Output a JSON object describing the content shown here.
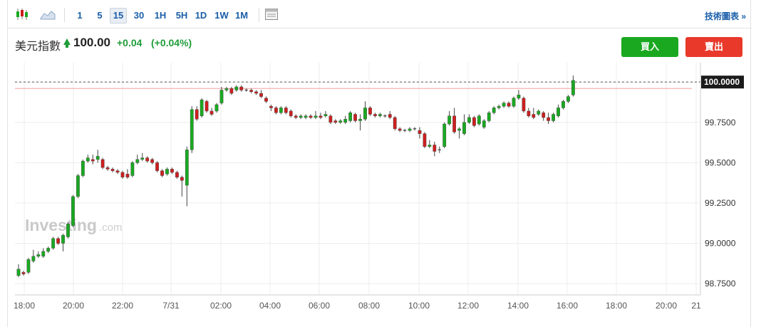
{
  "toolbar": {
    "icons": [
      "candlestick-icon",
      "area-chart-icon",
      "layout-panel-icon"
    ],
    "intervals": [
      "1",
      "5",
      "15",
      "30",
      "1H",
      "5H",
      "1D",
      "1W",
      "1M"
    ],
    "active_interval": "15",
    "tech_link": "技術圖表 »"
  },
  "header": {
    "instrument": "美元指數",
    "price": "100.00",
    "change": "+0.04",
    "change_pct": "(+0.04%)",
    "buy_label": "買入",
    "sell_label": "賣出"
  },
  "watermark": {
    "brand": "Investing",
    "suffix": ".com"
  },
  "colors": {
    "up": "#1aa821",
    "down": "#cc1f1f",
    "accent": "#1a5ea8",
    "current_price_line": "#f3a8a8"
  },
  "chart_data": {
    "type": "candlestick",
    "interval": "15",
    "x_tick_labels": [
      "18:00",
      "20:00",
      "22:00",
      "7/31",
      "02:00",
      "04:00",
      "06:00",
      "08:00",
      "10:00",
      "12:00",
      "14:00",
      "16:00",
      "18:00",
      "20:00",
      "21"
    ],
    "y_tick_labels": [
      "100.0000",
      "99.7500",
      "99.5000",
      "99.2500",
      "99.0000",
      "98.7500"
    ],
    "ylim": [
      98.68,
      100.12
    ],
    "current_price": 100.0,
    "current_price_label": "100.0000",
    "grid": true,
    "candles": [
      [
        98.8,
        98.84,
        98.87,
        98.79
      ],
      [
        98.82,
        98.81,
        98.83,
        98.8
      ],
      [
        98.82,
        98.9,
        98.91,
        98.81
      ],
      [
        98.89,
        98.92,
        98.96,
        98.88
      ],
      [
        98.92,
        98.93,
        98.95,
        98.91
      ],
      [
        98.92,
        98.95,
        98.97,
        98.91
      ],
      [
        98.95,
        98.97,
        98.98,
        98.94
      ],
      [
        98.97,
        99.03,
        99.04,
        98.96
      ],
      [
        99.03,
        99.0,
        99.04,
        98.99
      ],
      [
        99.0,
        99.05,
        99.06,
        98.95
      ],
      [
        99.04,
        99.12,
        99.13,
        99.03
      ],
      [
        99.11,
        99.29,
        99.3,
        99.1
      ],
      [
        99.29,
        99.42,
        99.43,
        99.28
      ],
      [
        99.42,
        99.51,
        99.52,
        99.41
      ],
      [
        99.51,
        99.53,
        99.55,
        99.5
      ],
      [
        99.52,
        99.51,
        99.55,
        99.49
      ],
      [
        99.52,
        99.54,
        99.58,
        99.5
      ],
      [
        99.52,
        99.47,
        99.53,
        99.46
      ],
      [
        99.47,
        99.46,
        99.48,
        99.45
      ],
      [
        99.46,
        99.45,
        99.47,
        99.44
      ],
      [
        99.45,
        99.44,
        99.46,
        99.43
      ],
      [
        99.44,
        99.41,
        99.45,
        99.4
      ],
      [
        99.43,
        99.41,
        99.46,
        99.4
      ],
      [
        99.42,
        99.5,
        99.51,
        99.41
      ],
      [
        99.5,
        99.52,
        99.55,
        99.49
      ],
      [
        99.52,
        99.53,
        99.56,
        99.51
      ],
      [
        99.53,
        99.51,
        99.54,
        99.5
      ],
      [
        99.52,
        99.5,
        99.53,
        99.49
      ],
      [
        99.5,
        99.45,
        99.51,
        99.44
      ],
      [
        99.45,
        99.42,
        99.46,
        99.41
      ],
      [
        99.43,
        99.46,
        99.47,
        99.42
      ],
      [
        99.46,
        99.44,
        99.47,
        99.43
      ],
      [
        99.44,
        99.41,
        99.45,
        99.4
      ],
      [
        99.41,
        99.39,
        99.42,
        99.29
      ],
      [
        99.36,
        99.58,
        99.6,
        99.23
      ],
      [
        99.58,
        99.83,
        99.85,
        99.56
      ],
      [
        99.83,
        99.77,
        99.85,
        99.76
      ],
      [
        99.79,
        99.89,
        99.9,
        99.78
      ],
      [
        99.88,
        99.82,
        99.89,
        99.81
      ],
      [
        99.82,
        99.8,
        99.84,
        99.79
      ],
      [
        99.82,
        99.86,
        99.87,
        99.81
      ],
      [
        99.87,
        99.95,
        99.97,
        99.86
      ],
      [
        99.95,
        99.96,
        99.97,
        99.94
      ],
      [
        99.96,
        99.93,
        99.97,
        99.92
      ],
      [
        99.95,
        99.97,
        99.98,
        99.94
      ],
      [
        99.97,
        99.95,
        99.98,
        99.94
      ],
      [
        99.95,
        99.95,
        99.96,
        99.94
      ],
      [
        99.95,
        99.94,
        99.96,
        99.93
      ],
      [
        99.94,
        99.93,
        99.95,
        99.92
      ],
      [
        99.93,
        99.91,
        99.95,
        99.9
      ],
      [
        99.9,
        99.88,
        99.91,
        99.87
      ],
      [
        99.85,
        99.84,
        99.86,
        99.82
      ],
      [
        99.84,
        99.81,
        99.85,
        99.8
      ],
      [
        99.81,
        99.84,
        99.85,
        99.8
      ],
      [
        99.84,
        99.81,
        99.85,
        99.8
      ],
      [
        99.82,
        99.79,
        99.83,
        99.78
      ],
      [
        99.79,
        99.78,
        99.8,
        99.77
      ],
      [
        99.78,
        99.79,
        99.8,
        99.77
      ],
      [
        99.78,
        99.79,
        99.8,
        99.77
      ],
      [
        99.79,
        99.78,
        99.8,
        99.77
      ],
      [
        99.78,
        99.79,
        99.82,
        99.77
      ],
      [
        99.79,
        99.78,
        99.81,
        99.77
      ],
      [
        99.79,
        99.8,
        99.82,
        99.78
      ],
      [
        99.79,
        99.75,
        99.8,
        99.74
      ],
      [
        99.76,
        99.75,
        99.77,
        99.74
      ],
      [
        99.75,
        99.76,
        99.77,
        99.74
      ],
      [
        99.75,
        99.77,
        99.79,
        99.74
      ],
      [
        99.76,
        99.81,
        99.82,
        99.75
      ],
      [
        99.8,
        99.76,
        99.81,
        99.75
      ],
      [
        99.76,
        99.77,
        99.8,
        99.7
      ],
      [
        99.77,
        99.84,
        99.88,
        99.76
      ],
      [
        99.84,
        99.8,
        99.85,
        99.79
      ],
      [
        99.8,
        99.79,
        99.81,
        99.78
      ],
      [
        99.79,
        99.8,
        99.81,
        99.78
      ],
      [
        99.79,
        99.79,
        99.8,
        99.78
      ],
      [
        99.8,
        99.78,
        99.82,
        99.77
      ],
      [
        99.78,
        99.71,
        99.79,
        99.7
      ],
      [
        99.71,
        99.7,
        99.72,
        99.69
      ],
      [
        99.7,
        99.7,
        99.71,
        99.69
      ],
      [
        99.7,
        99.71,
        99.72,
        99.69
      ],
      [
        99.71,
        99.71,
        99.72,
        99.7
      ],
      [
        99.7,
        99.68,
        99.72,
        99.65
      ],
      [
        99.68,
        99.6,
        99.69,
        99.59
      ],
      [
        99.6,
        99.61,
        99.64,
        99.59
      ],
      [
        99.61,
        99.57,
        99.63,
        99.54
      ],
      [
        99.58,
        99.58,
        99.6,
        99.56
      ],
      [
        99.6,
        99.74,
        99.75,
        99.59
      ],
      [
        99.74,
        99.79,
        99.82,
        99.73
      ],
      [
        99.79,
        99.69,
        99.84,
        99.68
      ],
      [
        99.7,
        99.71,
        99.72,
        99.65
      ],
      [
        99.68,
        99.75,
        99.8,
        99.67
      ],
      [
        99.75,
        99.78,
        99.8,
        99.74
      ],
      [
        99.78,
        99.73,
        99.79,
        99.72
      ],
      [
        99.74,
        99.79,
        99.8,
        99.73
      ],
      [
        99.72,
        99.76,
        99.77,
        99.71
      ],
      [
        99.76,
        99.81,
        99.82,
        99.75
      ],
      [
        99.81,
        99.84,
        99.85,
        99.8
      ],
      [
        99.84,
        99.85,
        99.86,
        99.83
      ],
      [
        99.85,
        99.87,
        99.88,
        99.84
      ],
      [
        99.87,
        99.85,
        99.88,
        99.84
      ],
      [
        99.85,
        99.9,
        99.91,
        99.84
      ],
      [
        99.9,
        99.92,
        99.95,
        99.89
      ],
      [
        99.9,
        99.82,
        99.91,
        99.81
      ],
      [
        99.82,
        99.79,
        99.84,
        99.78
      ],
      [
        99.8,
        99.78,
        99.84,
        99.77
      ],
      [
        99.8,
        99.82,
        99.83,
        99.79
      ],
      [
        99.81,
        99.78,
        99.82,
        99.76
      ],
      [
        99.78,
        99.76,
        99.81,
        99.74
      ],
      [
        99.76,
        99.8,
        99.81,
        99.75
      ],
      [
        99.79,
        99.84,
        99.86,
        99.78
      ],
      [
        99.84,
        99.88,
        99.89,
        99.83
      ],
      [
        99.88,
        99.91,
        99.92,
        99.87
      ],
      [
        99.92,
        100.01,
        100.04,
        99.91
      ]
    ]
  }
}
